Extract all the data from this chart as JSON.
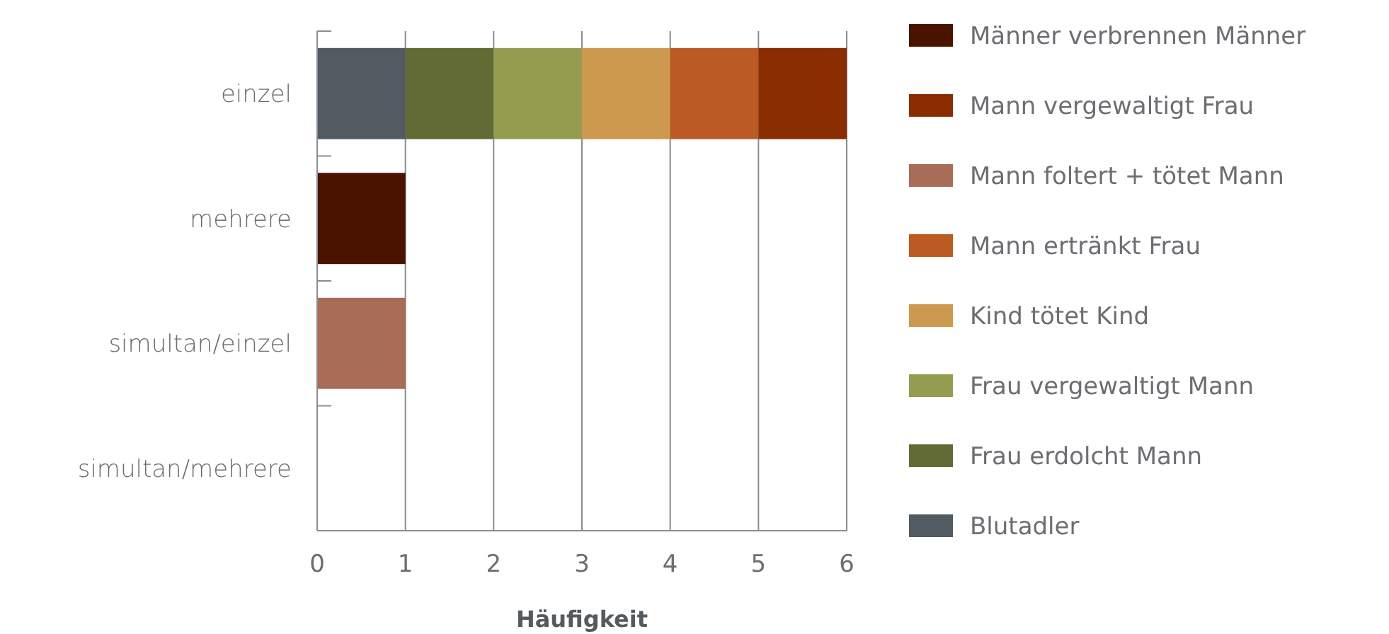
{
  "chart_data": {
    "type": "bar",
    "orientation": "horizontal",
    "stacked": true,
    "xlabel": "Häufigkeit",
    "categories": [
      "einzel",
      "mehrere",
      "simultan/einzel",
      "simultan/mehrere"
    ],
    "series": [
      {
        "name": "Blutadler",
        "color": "#525a62",
        "values": [
          1,
          0,
          0,
          0
        ]
      },
      {
        "name": "Frau erdolcht Mann",
        "color": "#626a35",
        "values": [
          1,
          0,
          0,
          0
        ]
      },
      {
        "name": "Frau vergewaltigt Mann",
        "color": "#959c50",
        "values": [
          1,
          0,
          0,
          0
        ]
      },
      {
        "name": "Kind tötet Kind",
        "color": "#cd994e",
        "values": [
          1,
          0,
          0,
          0
        ]
      },
      {
        "name": "Mann ertränkt Frau",
        "color": "#bb5a22",
        "values": [
          1,
          0,
          0,
          0
        ]
      },
      {
        "name": "Mann foltert + tötet Mann",
        "color": "#a86d56",
        "values": [
          0,
          0,
          1,
          0
        ]
      },
      {
        "name": "Mann vergewaltigt Frau",
        "color": "#8a2d02",
        "values": [
          1,
          0,
          0,
          0
        ]
      },
      {
        "name": "Männer verbrennen Männer",
        "color": "#4a1300",
        "values": [
          0,
          1,
          0,
          0
        ]
      }
    ],
    "xlim": [
      0,
      6
    ],
    "xticks": [
      0,
      1,
      2,
      3,
      4,
      5,
      6
    ],
    "grid": "x",
    "legend": "right"
  }
}
